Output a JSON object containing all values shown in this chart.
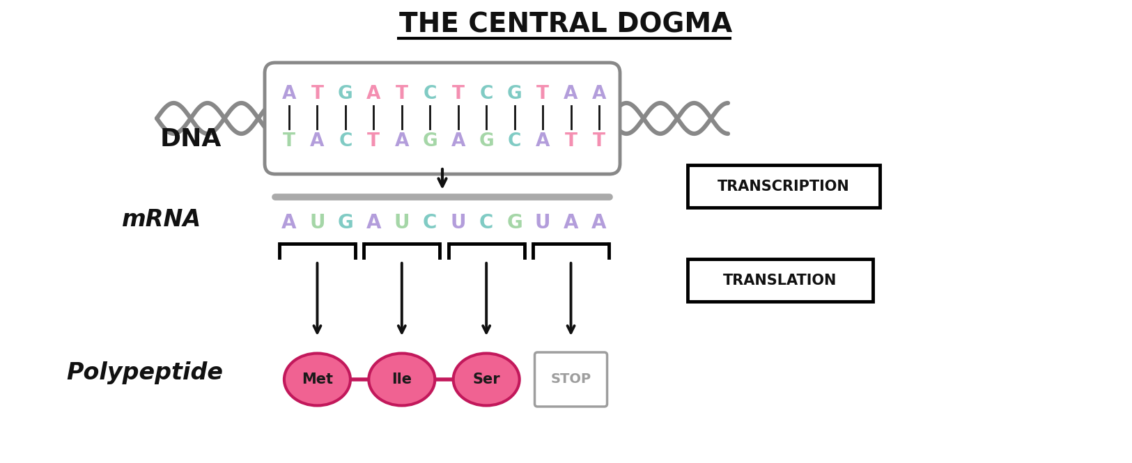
{
  "title": "THE CENTRAL DOGMA",
  "bg_color": "#ffffff",
  "dna_top": [
    "A",
    "T",
    "G",
    "A",
    "T",
    "C",
    "T",
    "C",
    "G",
    "T",
    "A",
    "A"
  ],
  "dna_bot": [
    "T",
    "A",
    "C",
    "T",
    "A",
    "G",
    "A",
    "G",
    "C",
    "A",
    "T",
    "T"
  ],
  "dna_top_colors": [
    "#b39ddb",
    "#f48fb1",
    "#80cbc4",
    "#f48fb1",
    "#f48fb1",
    "#80cbc4",
    "#f48fb1",
    "#80cbc4",
    "#80cbc4",
    "#f48fb1",
    "#b39ddb",
    "#b39ddb"
  ],
  "dna_bot_colors": [
    "#a5d6a7",
    "#b39ddb",
    "#80cbc4",
    "#f48fb1",
    "#b39ddb",
    "#a5d6a7",
    "#b39ddb",
    "#a5d6a7",
    "#80cbc4",
    "#b39ddb",
    "#f48fb1",
    "#f48fb1"
  ],
  "mrna_seq": [
    "A",
    "U",
    "G",
    "A",
    "U",
    "C",
    "U",
    "C",
    "G",
    "U",
    "A",
    "A"
  ],
  "mrna_colors": [
    "#b39ddb",
    "#a5d6a7",
    "#80cbc4",
    "#b39ddb",
    "#a5d6a7",
    "#80cbc4",
    "#b39ddb",
    "#80cbc4",
    "#a5d6a7",
    "#b39ddb",
    "#b39ddb",
    "#b39ddb"
  ],
  "aa_labels": [
    "Met",
    "Ile",
    "Ser",
    "STOP"
  ],
  "aa_colors": [
    "#f06292",
    "#f06292",
    "#f06292",
    "none"
  ],
  "aa_edge_colors": [
    "#c2185b",
    "#c2185b",
    "#c2185b",
    "#9e9e9e"
  ],
  "aa_text_colors": [
    "#1a1a1a",
    "#1a1a1a",
    "#1a1a1a",
    "#9e9e9e"
  ],
  "label_dna": "DNA",
  "label_mrna": "mRNA",
  "label_poly": "Polypeptide",
  "label_transcription": "TRANSCRIPTION",
  "label_translation": "TRANSLATION",
  "squiggle_color": "#888888",
  "box_edge_color": "#888888",
  "bond_color": "#111111",
  "arrow_color": "#111111"
}
